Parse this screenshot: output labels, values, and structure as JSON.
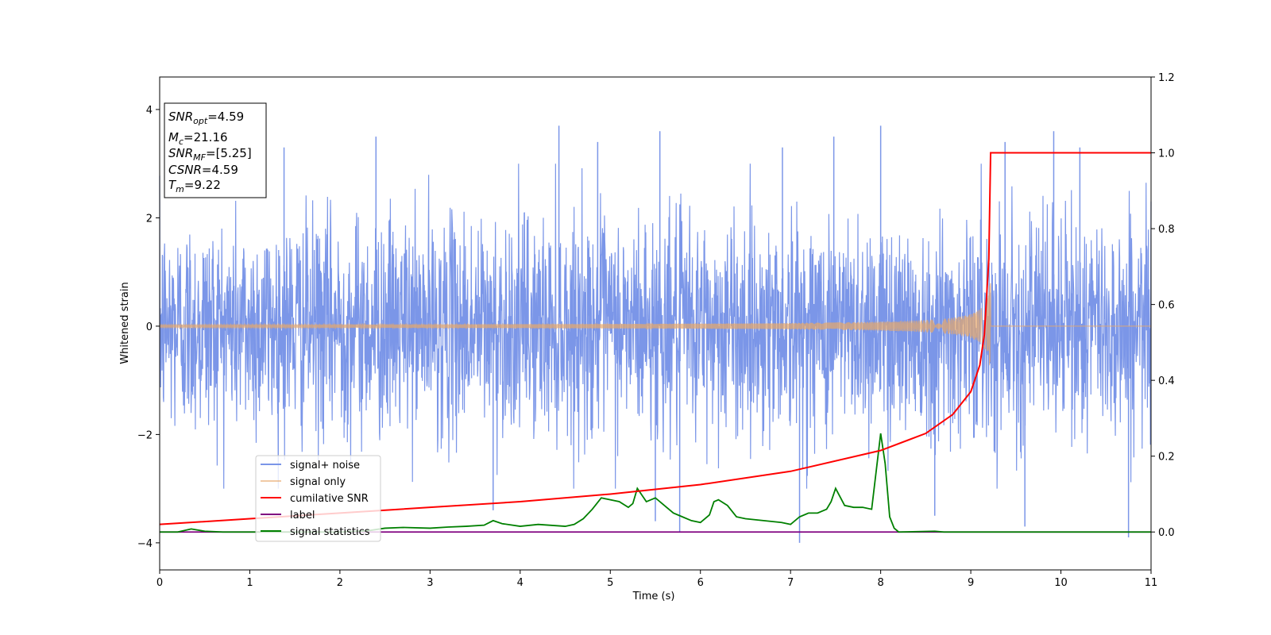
{
  "chart_data": {
    "type": "line",
    "xlabel": "Time (s)",
    "ylabel": "Whitened strain",
    "xlim": [
      0,
      11
    ],
    "ylim": [
      -4.5,
      4.6
    ],
    "y2lim": [
      -0.1,
      1.2
    ],
    "x_ticks": [
      "0",
      "1",
      "2",
      "3",
      "4",
      "5",
      "6",
      "7",
      "8",
      "9",
      "10",
      "11"
    ],
    "y_ticks": [
      "−4",
      "−2",
      "0",
      "2",
      "4"
    ],
    "y2_ticks": [
      "0.0",
      "0.2",
      "0.4",
      "0.6",
      "0.8",
      "1.0",
      "1.2"
    ],
    "info_box": {
      "snr_opt": {
        "main": "SNR",
        "sub": "opt",
        "value": "=4.59"
      },
      "mc": {
        "main": "M",
        "sub": "c",
        "value": "=21.16"
      },
      "snr_mf": {
        "main": "SNR",
        "sub": "MF",
        "value": "=[5.25]"
      },
      "csnr": {
        "main": "CSNR",
        "value": "=4.59"
      },
      "tm": {
        "main": "T",
        "sub": "m",
        "value": "=9.22"
      }
    },
    "legend": {
      "placement": "lower-left",
      "entries": [
        "signal+ noise",
        "signal only",
        "cumilative SNR",
        "label",
        "signal statistics"
      ]
    },
    "colors": {
      "noise": "#7b96e8",
      "signal": "#e8a86a",
      "cumulative": "#ff0000",
      "label": "#800080",
      "stat": "#008000"
    },
    "series": [
      {
        "name": "signal+ noise",
        "axis": "left",
        "description_values": {
          "std": 1.0,
          "range": [
            -4.1,
            3.8
          ],
          "peak_times": [
            1.38,
            2.4,
            4.43,
            4.86,
            5.55,
            6.91,
            7.48,
            8.0,
            9.38,
            9.92,
            10.21
          ],
          "trough_times": [
            3.7,
            5.5,
            5.77,
            7.1,
            8.6,
            9.6,
            10.75
          ]
        }
      },
      {
        "name": "signal only",
        "axis": "left",
        "t_merge": 9.22,
        "peak_amplitude": 1.0
      },
      {
        "name": "cumilative SNR",
        "axis": "right",
        "x": [
          0,
          1,
          2,
          3,
          4,
          5,
          6,
          7,
          8,
          8.5,
          8.8,
          9.0,
          9.1,
          9.15,
          9.2,
          9.22,
          11
        ],
        "y": [
          0.02,
          0.035,
          0.05,
          0.065,
          0.08,
          0.1,
          0.125,
          0.16,
          0.215,
          0.26,
          0.31,
          0.37,
          0.44,
          0.52,
          0.72,
          1.0,
          1.0
        ]
      },
      {
        "name": "label",
        "axis": "right",
        "x": [
          0,
          11
        ],
        "y": [
          0.0,
          0.0
        ]
      },
      {
        "name": "signal statistics",
        "axis": "right",
        "x": [
          0,
          0.2,
          0.35,
          0.5,
          0.7,
          1.0,
          1.5,
          2.0,
          2.3,
          2.5,
          2.7,
          3.0,
          3.2,
          3.4,
          3.6,
          3.7,
          3.8,
          4.0,
          4.2,
          4.5,
          4.6,
          4.7,
          4.8,
          4.9,
          5.0,
          5.1,
          5.2,
          5.25,
          5.3,
          5.4,
          5.5,
          5.6,
          5.7,
          5.8,
          5.9,
          6.0,
          6.1,
          6.15,
          6.2,
          6.3,
          6.4,
          6.5,
          6.7,
          6.9,
          7.0,
          7.1,
          7.2,
          7.3,
          7.4,
          7.45,
          7.5,
          7.6,
          7.7,
          7.8,
          7.9,
          8.0,
          8.05,
          8.1,
          8.15,
          8.2,
          8.6,
          8.7,
          9.0,
          11.0
        ],
        "y": [
          0.0,
          0.0,
          0.008,
          0.002,
          0.0,
          0.0,
          0.0,
          0.0,
          0.003,
          0.01,
          0.012,
          0.01,
          0.013,
          0.015,
          0.018,
          0.03,
          0.022,
          0.015,
          0.02,
          0.015,
          0.02,
          0.035,
          0.06,
          0.09,
          0.085,
          0.08,
          0.065,
          0.075,
          0.115,
          0.08,
          0.09,
          0.07,
          0.05,
          0.04,
          0.03,
          0.025,
          0.045,
          0.08,
          0.085,
          0.07,
          0.04,
          0.035,
          0.03,
          0.025,
          0.02,
          0.04,
          0.05,
          0.05,
          0.06,
          0.08,
          0.115,
          0.07,
          0.065,
          0.065,
          0.06,
          0.26,
          0.18,
          0.04,
          0.01,
          0.0,
          0.002,
          0.0,
          0.0,
          0.0
        ]
      }
    ]
  }
}
